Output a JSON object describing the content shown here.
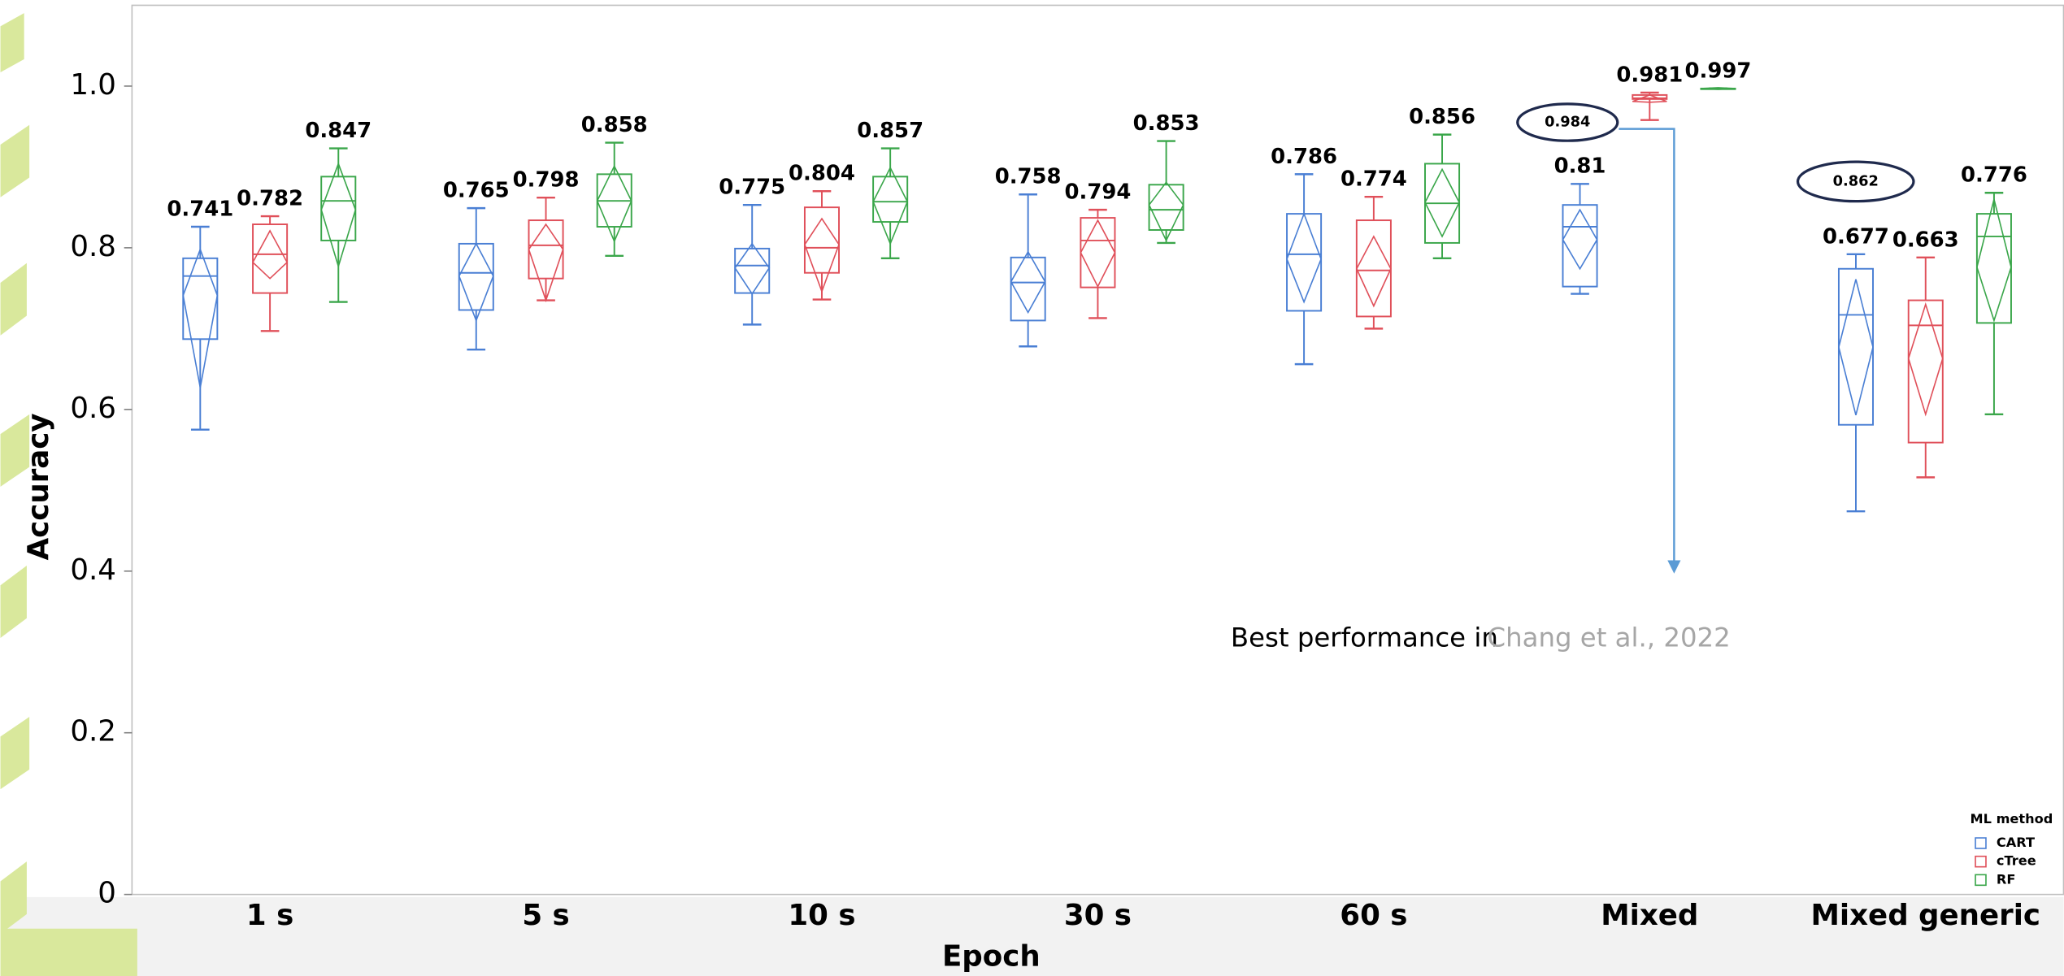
{
  "chart_data": {
    "type": "box",
    "y_label": "Accuracy",
    "x_label": "Epoch",
    "categories": [
      "1 s",
      "5 s",
      "10 s",
      "30 s",
      "60 s",
      "Mixed",
      "Mixed generic"
    ],
    "ylim": [
      0,
      1.1
    ],
    "yticks": [
      0,
      0.2,
      0.4,
      0.6,
      0.8,
      {
        "value": 1,
        "label": "1.0"
      }
    ],
    "legend_title": "ML method",
    "legend": "bottom-right",
    "series": [
      {
        "name": "CART",
        "color": "#4a7fd4",
        "values": [
          0.741,
          0.765,
          0.775,
          0.758,
          0.786,
          0.81,
          0.677
        ],
        "low": [
          0.575,
          0.674,
          0.705,
          0.678,
          0.656,
          0.743,
          0.474
        ],
        "q1": [
          0.687,
          0.723,
          0.744,
          0.71,
          0.722,
          0.752,
          0.581
        ],
        "median": [
          0.765,
          0.769,
          0.778,
          0.757,
          0.792,
          0.826,
          0.717
        ],
        "q3": [
          0.787,
          0.805,
          0.799,
          0.788,
          0.842,
          0.853,
          0.774
        ],
        "high": [
          0.826,
          0.849,
          0.853,
          0.866,
          0.891,
          0.879,
          0.792
        ],
        "diamond_low": [
          0.627,
          0.71,
          0.743,
          0.72,
          0.733,
          0.774,
          0.593
        ],
        "diamond_high": [
          0.798,
          0.805,
          0.805,
          0.795,
          0.842,
          0.847,
          0.761
        ]
      },
      {
        "name": "cTree",
        "color": "#e0505a",
        "values": [
          0.782,
          0.798,
          0.804,
          0.794,
          0.774,
          0.981,
          0.663
        ],
        "low": [
          0.697,
          0.735,
          0.736,
          0.713,
          0.7,
          0.958,
          0.516
        ],
        "q1": [
          0.744,
          0.762,
          0.769,
          0.751,
          0.715,
          0.984,
          0.559
        ],
        "median": [
          0.792,
          0.803,
          0.8,
          0.809,
          0.772,
          0.985,
          0.704
        ],
        "q3": [
          0.829,
          0.834,
          0.85,
          0.837,
          0.834,
          0.989,
          0.735
        ],
        "high": [
          0.839,
          0.862,
          0.87,
          0.847,
          0.863,
          0.992,
          0.788
        ],
        "diamond_low": [
          0.762,
          0.735,
          0.746,
          0.752,
          0.728,
          0.98,
          0.594
        ],
        "diamond_high": [
          0.821,
          0.829,
          0.836,
          0.834,
          0.814,
          0.989,
          0.73
        ]
      },
      {
        "name": "RF",
        "color": "#3aa64a",
        "values": [
          0.847,
          0.858,
          0.857,
          0.853,
          0.856,
          0.997,
          0.776
        ],
        "low": [
          0.733,
          0.79,
          0.787,
          0.806,
          0.787,
          0.997,
          0.594
        ],
        "q1": [
          0.809,
          0.826,
          0.832,
          0.822,
          0.806,
          0.997,
          0.707
        ],
        "median": [
          0.858,
          0.858,
          0.857,
          0.847,
          0.855,
          0.997,
          0.814
        ],
        "q3": [
          0.888,
          0.891,
          0.888,
          0.878,
          0.904,
          0.997,
          0.842
        ],
        "high": [
          0.923,
          0.93,
          0.923,
          0.932,
          0.94,
          0.997,
          0.868
        ],
        "diamond_low": [
          0.777,
          0.808,
          0.805,
          0.809,
          0.814,
          0.996,
          0.71
        ],
        "diamond_high": [
          0.904,
          0.901,
          0.899,
          0.881,
          0.897,
          0.998,
          0.86
        ]
      }
    ],
    "annotations": [
      "0.984",
      "0.862"
    ],
    "note": [
      "Best performance in",
      "Chang et al., 2022"
    ]
  }
}
